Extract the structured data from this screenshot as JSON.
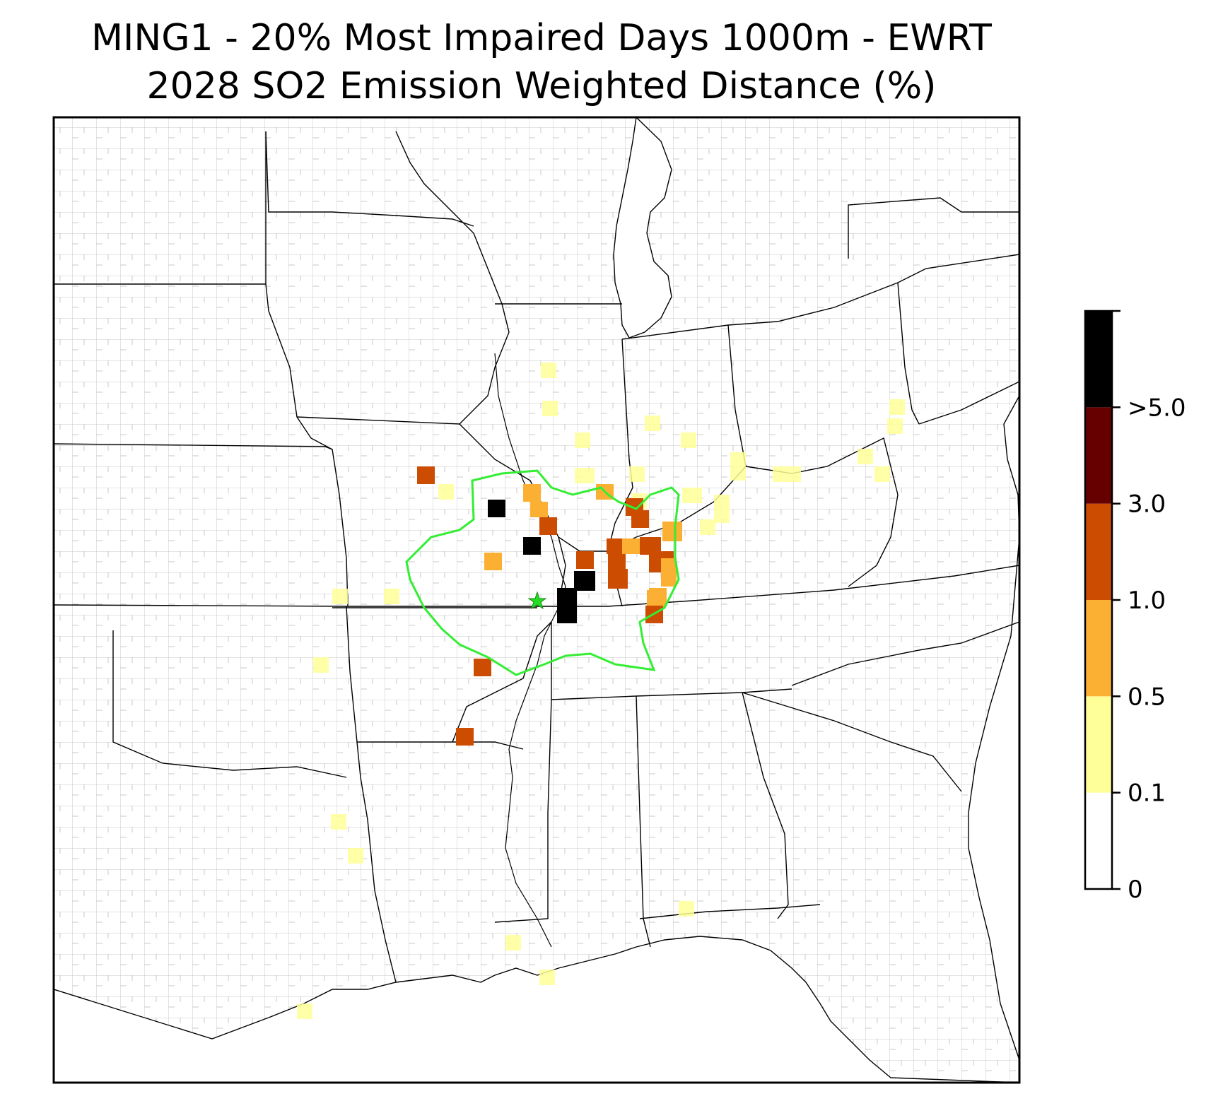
{
  "title": {
    "line1": "MING1 - 20% Most Impaired Days 1000m - EWRT",
    "line2": "2028 SO2 Emission Weighted Distance (%)"
  },
  "legend": {
    "bins": [
      {
        "label": "0",
        "color": "#ffffff"
      },
      {
        "label": "0.1",
        "color": "#ffff99"
      },
      {
        "label": "0.5",
        "color": "#fbb034"
      },
      {
        "label": "1.0",
        "color": "#cc4c02"
      },
      {
        "label": "3.0",
        "color": "#660000"
      },
      {
        "label": ">5.0",
        "color": "#000000"
      }
    ],
    "tick_labels": [
      "0",
      "0.1",
      "0.5",
      "1.0",
      "3.0",
      ">5.0"
    ]
  },
  "map": {
    "receptor_marker": "green star",
    "contour_color": "#33ee33",
    "state_border_color": "#000000",
    "county_border_color": "#9a9a9a"
  }
}
